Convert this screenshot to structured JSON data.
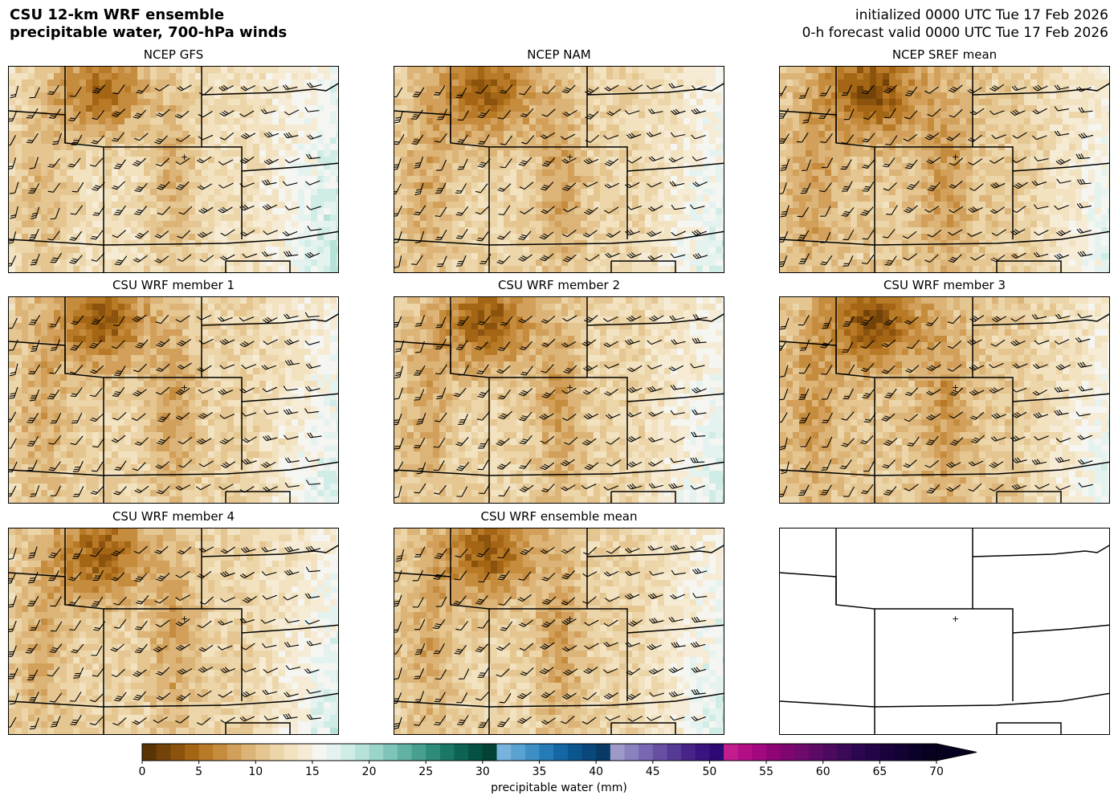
{
  "header": {
    "title_line1": "CSU 12-km WRF ensemble",
    "title_line2": "precipitable water, 700-hPa winds",
    "init_line": "initialized 0000 UTC Tue 17 Feb 2026",
    "valid_line": "0-h forecast valid 0000 UTC Tue 17 Feb 2026"
  },
  "panels": [
    {
      "title": "NCEP GFS",
      "variant": 0
    },
    {
      "title": "NCEP NAM",
      "variant": 1
    },
    {
      "title": "NCEP SREF mean",
      "variant": 2
    },
    {
      "title": "CSU WRF member 1",
      "variant": 3
    },
    {
      "title": "CSU WRF member 2",
      "variant": 4
    },
    {
      "title": "CSU WRF member 3",
      "variant": 5
    },
    {
      "title": "CSU WRF member 4",
      "variant": 6
    },
    {
      "title": "CSU WRF ensemble mean",
      "variant": 7
    },
    {
      "title": "",
      "variant": -1
    }
  ],
  "colorbar": {
    "label": "precipitable water (mm)",
    "ticks": [
      "0",
      "5",
      "10",
      "15",
      "20",
      "25",
      "30",
      "35",
      "40",
      "45",
      "50",
      "55",
      "60",
      "65",
      "70"
    ],
    "range": [
      0,
      70
    ],
    "extend": "max",
    "colors": [
      "#5b3406",
      "#74430a",
      "#8c530e",
      "#a46514",
      "#b87a26",
      "#c68c3e",
      "#d2a05a",
      "#dcb477",
      "#e5c690",
      "#ecd5a8",
      "#f2e2c0",
      "#f6ecd6",
      "#f5f5f1",
      "#e5f3f0",
      "#cfece6",
      "#b6e2d9",
      "#9bd5ca",
      "#7ec4b7",
      "#62b2a3",
      "#47a08f",
      "#2f8c7a",
      "#1b7866",
      "#0e6453",
      "#055143",
      "#034234",
      "#78b3dd",
      "#5aa2d2",
      "#3d8fc5",
      "#247bb6",
      "#1467a4",
      "#0c5690",
      "#0a477a",
      "#083a65",
      "#9d99c8",
      "#8a81bf",
      "#7867b2",
      "#6750a4",
      "#573a96",
      "#472489",
      "#3a147e",
      "#2d0a73",
      "#c21c8d",
      "#b20f86",
      "#a2087f",
      "#900576",
      "#7f0570",
      "#6d0a6b",
      "#5c0a65",
      "#4b0a5f",
      "#3c0858",
      "#2c0650",
      "#230446",
      "#1a033c",
      "#120233",
      "#0c0129",
      "#08011f"
    ]
  }
}
